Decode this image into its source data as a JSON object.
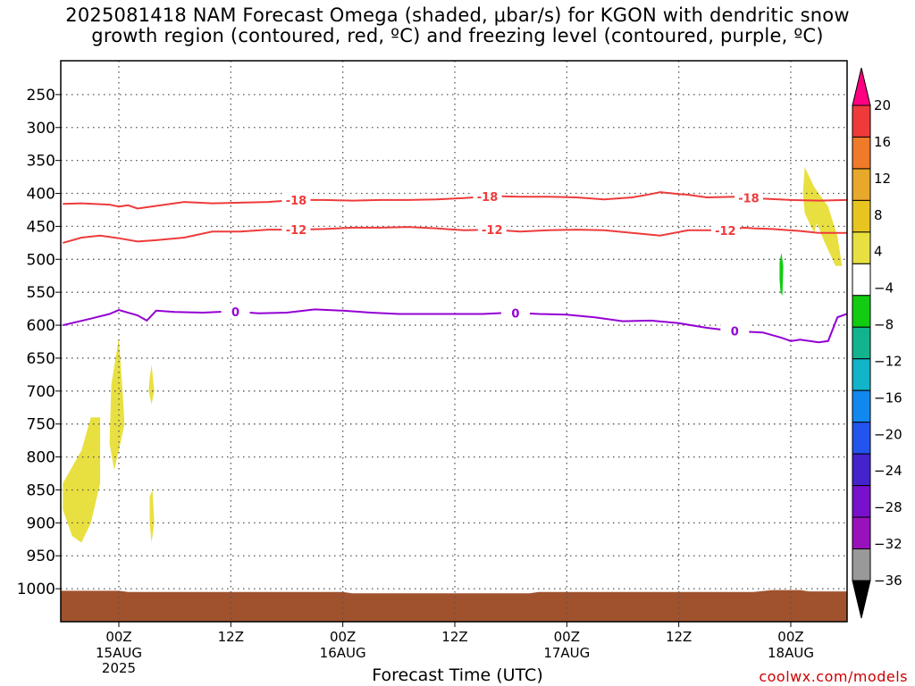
{
  "title_line1": "2025081418 NAM Forecast Omega (shaded, μbar/s) for KGON with dendritic snow",
  "title_line2": "growth region (contoured, red, ºC) and freezing level (contoured, purple, ºC)",
  "credit": "coolwx.com/models",
  "chart_data": {
    "type": "time-height cross-section",
    "xlabel": "Forecast Time (UTC)",
    "ylabel": "",
    "y_axis": {
      "unit": "hPa",
      "inverted": true,
      "ylim": [
        1050,
        200
      ],
      "ticks": [
        250,
        300,
        350,
        400,
        450,
        500,
        550,
        600,
        650,
        700,
        750,
        800,
        850,
        900,
        950,
        1000
      ]
    },
    "x_axis": {
      "hours_range": [
        -6,
        66
      ],
      "ticks": [
        {
          "hour": 0,
          "label": "00Z",
          "sub1": "15AUG",
          "sub2": "2025"
        },
        {
          "hour": 12,
          "label": "12Z",
          "sub1": "",
          "sub2": ""
        },
        {
          "hour": 24,
          "label": "00Z",
          "sub1": "16AUG",
          "sub2": ""
        },
        {
          "hour": 36,
          "label": "12Z",
          "sub1": "",
          "sub2": ""
        },
        {
          "hour": 48,
          "label": "00Z",
          "sub1": "17AUG",
          "sub2": ""
        },
        {
          "hour": 60,
          "label": "12Z",
          "sub1": "",
          "sub2": ""
        },
        {
          "hour": 72,
          "label": "00Z",
          "sub1": "18AUG",
          "sub2": ""
        }
      ]
    },
    "grid": true,
    "colorbar": {
      "levels": [
        "20",
        "16",
        "12",
        "8",
        "4",
        "−4",
        "−8",
        "−12",
        "−16",
        "−20",
        "−24",
        "−28",
        "−32",
        "−36"
      ],
      "colors": [
        "#ff0080",
        "#ee3a3a",
        "#ee7a2a",
        "#e8a82a",
        "#e8c420",
        "#e8e040",
        "#ffffff",
        "#11cc11",
        "#11b48c",
        "#11b4c8",
        "#1188ee",
        "#2255ee",
        "#4422cc",
        "#7711cc",
        "#9911bb",
        "#999999",
        "#000000"
      ]
    },
    "contours": [
      {
        "name": "-18",
        "color": "#ee3b3b",
        "label_positions": [
          19,
          39.5,
          67.5
        ],
        "points": [
          [
            -6,
            416
          ],
          [
            -4,
            415
          ],
          [
            -1,
            417
          ],
          [
            0,
            420
          ],
          [
            1,
            418
          ],
          [
            2,
            423
          ],
          [
            4,
            419
          ],
          [
            7,
            413
          ],
          [
            10,
            415
          ],
          [
            13,
            414
          ],
          [
            16,
            413
          ],
          [
            19,
            410
          ],
          [
            22,
            410
          ],
          [
            25,
            411
          ],
          [
            28,
            410
          ],
          [
            31,
            410
          ],
          [
            34,
            409
          ],
          [
            37,
            407
          ],
          [
            40,
            404
          ],
          [
            43,
            405
          ],
          [
            46,
            405
          ],
          [
            49,
            406
          ],
          [
            52,
            409
          ],
          [
            55,
            406
          ],
          [
            57,
            401
          ],
          [
            58,
            398
          ],
          [
            60,
            401
          ],
          [
            61,
            402
          ],
          [
            63,
            406
          ],
          [
            66,
            405
          ],
          [
            69,
            408
          ],
          [
            72,
            410
          ],
          [
            75,
            411
          ],
          [
            78,
            410
          ]
        ]
      },
      {
        "name": "-12",
        "color": "#ee3b3b",
        "label_positions": [
          19,
          40,
          65
        ],
        "points": [
          [
            -6,
            475
          ],
          [
            -4,
            467
          ],
          [
            -2,
            464
          ],
          [
            0,
            468
          ],
          [
            2,
            473
          ],
          [
            4,
            471
          ],
          [
            7,
            467
          ],
          [
            10,
            458
          ],
          [
            13,
            458
          ],
          [
            16,
            455
          ],
          [
            19,
            455
          ],
          [
            22,
            454
          ],
          [
            25,
            452
          ],
          [
            28,
            452
          ],
          [
            31,
            451
          ],
          [
            34,
            453
          ],
          [
            37,
            456
          ],
          [
            40,
            455
          ],
          [
            43,
            458
          ],
          [
            46,
            456
          ],
          [
            49,
            455
          ],
          [
            52,
            456
          ],
          [
            55,
            460
          ],
          [
            58,
            464
          ],
          [
            61,
            456
          ],
          [
            63,
            456
          ],
          [
            65,
            456
          ],
          [
            67,
            452
          ],
          [
            68,
            453
          ],
          [
            70,
            454
          ],
          [
            73,
            457
          ],
          [
            75,
            460
          ],
          [
            78,
            460
          ]
        ]
      },
      {
        "name": "0",
        "color": "#9400d3",
        "label_positions": [
          12.5,
          42.5,
          66
        ],
        "points": [
          [
            -6,
            600
          ],
          [
            -3,
            590
          ],
          [
            -1,
            583
          ],
          [
            0,
            577
          ],
          [
            2,
            585
          ],
          [
            3,
            593
          ],
          [
            4,
            578
          ],
          [
            6,
            580
          ],
          [
            9,
            581
          ],
          [
            12,
            579
          ],
          [
            15,
            582
          ],
          [
            18,
            581
          ],
          [
            21,
            576
          ],
          [
            24,
            578
          ],
          [
            27,
            581
          ],
          [
            30,
            583
          ],
          [
            33,
            583
          ],
          [
            36,
            583
          ],
          [
            39,
            583
          ],
          [
            42,
            581
          ],
          [
            45,
            583
          ],
          [
            48,
            584
          ],
          [
            51,
            588
          ],
          [
            54,
            594
          ],
          [
            57,
            593
          ],
          [
            60,
            597
          ],
          [
            63,
            604
          ],
          [
            66,
            609
          ],
          [
            69,
            611
          ],
          [
            71,
            619
          ],
          [
            72,
            624
          ],
          [
            73,
            622
          ],
          [
            75,
            626
          ],
          [
            76,
            624
          ],
          [
            77,
            588
          ],
          [
            78,
            583
          ]
        ]
      }
    ],
    "omega_shaded_regions": [
      {
        "bin": "4 to 8",
        "color": "#e8e040",
        "points": [
          [
            -6,
            840
          ],
          [
            -4,
            790
          ],
          [
            -3,
            740
          ],
          [
            -2,
            740
          ],
          [
            -2,
            840
          ],
          [
            -3,
            900
          ],
          [
            -4,
            930
          ],
          [
            -5,
            920
          ],
          [
            -6,
            880
          ]
        ]
      },
      {
        "bin": "4 to 8",
        "color": "#e8e040",
        "points": [
          [
            -1,
            780
          ],
          [
            -0.8,
            690
          ],
          [
            0,
            620
          ],
          [
            0.4,
            700
          ],
          [
            0.6,
            750
          ],
          [
            0,
            790
          ],
          [
            -0.5,
            820
          ]
        ]
      },
      {
        "bin": "4 to 8",
        "color": "#e8e040",
        "points": [
          [
            3.3,
            680
          ],
          [
            3.5,
            660
          ],
          [
            3.8,
            700
          ],
          [
            3.5,
            720
          ],
          [
            3.2,
            700
          ]
        ]
      },
      {
        "bin": "4 to 8",
        "color": "#e8e040",
        "points": [
          [
            3.3,
            860
          ],
          [
            3.6,
            850
          ],
          [
            3.8,
            900
          ],
          [
            3.5,
            930
          ],
          [
            3.3,
            900
          ]
        ]
      },
      {
        "bin": "−4 to −8",
        "color": "#11cc11",
        "points": [
          [
            70.8,
            505
          ],
          [
            71,
            490
          ],
          [
            71.2,
            510
          ],
          [
            71.1,
            555
          ],
          [
            70.9,
            550
          ],
          [
            70.8,
            530
          ]
        ]
      },
      {
        "bin": "4 to 8",
        "color": "#e8e040",
        "points": [
          [
            73.3,
            400
          ],
          [
            73.5,
            360
          ],
          [
            74.5,
            390
          ],
          [
            76,
            420
          ],
          [
            77,
            465
          ],
          [
            77.5,
            510
          ],
          [
            76.8,
            510
          ],
          [
            75.5,
            470
          ],
          [
            74.8,
            445
          ],
          [
            74.5,
            460
          ],
          [
            73.5,
            430
          ]
        ]
      }
    ]
  }
}
